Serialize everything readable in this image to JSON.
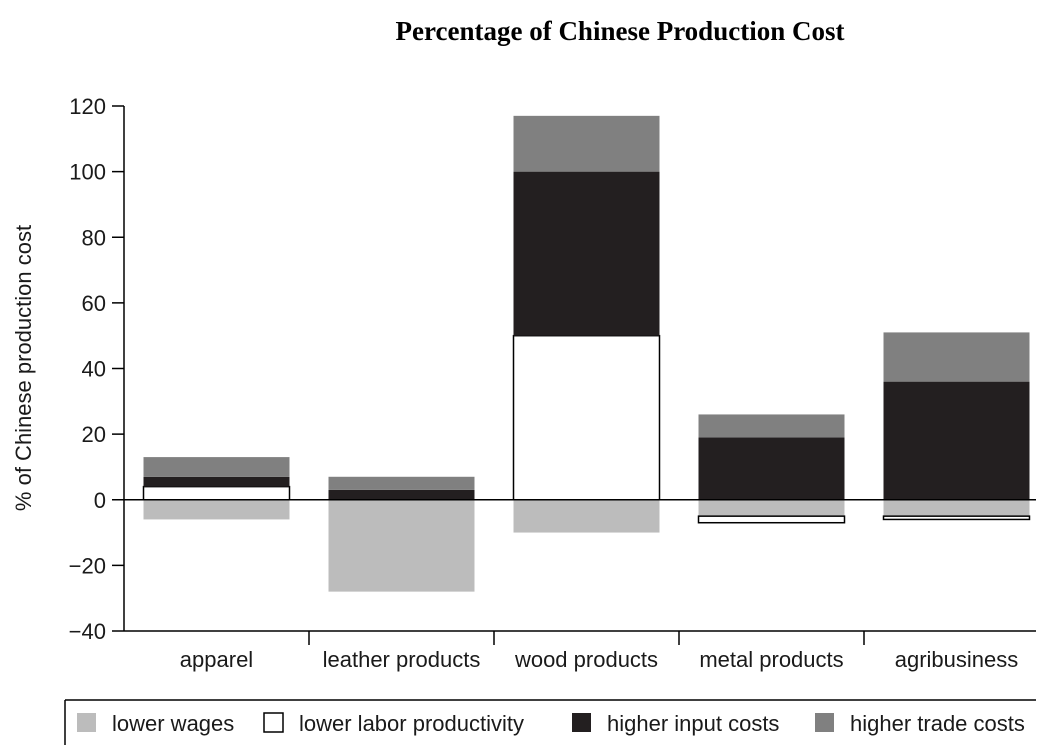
{
  "chart_data": {
    "type": "bar",
    "stacked": true,
    "title": "Percentage of Chinese Production Cost",
    "xlabel": "",
    "ylabel": "% of Chinese production cost",
    "ylim": [
      -40,
      120
    ],
    "yticks": [
      120,
      100,
      80,
      60,
      40,
      20,
      0,
      -20,
      -40
    ],
    "ytick_labels": [
      "120",
      "100",
      "80",
      "60",
      "40",
      "20",
      "0",
      "−20",
      "−40"
    ],
    "grid": false,
    "legend_position": "bottom",
    "categories": [
      "apparel",
      "leather products",
      "wood products",
      "metal products",
      "agribusiness"
    ],
    "series": [
      {
        "name": "lower wages",
        "color": "#bcbcbc",
        "values": [
          -6,
          -28,
          -10,
          -5,
          -5
        ]
      },
      {
        "name": "lower labor productivity",
        "color": "#ffffff",
        "values": [
          4,
          0,
          50,
          -2,
          -1
        ]
      },
      {
        "name": "higher input costs",
        "color": "#231f20",
        "values": [
          3,
          3,
          50,
          19,
          36
        ]
      },
      {
        "name": "higher trade costs",
        "color": "#808080",
        "values": [
          6,
          4,
          17,
          7,
          15
        ]
      }
    ]
  }
}
